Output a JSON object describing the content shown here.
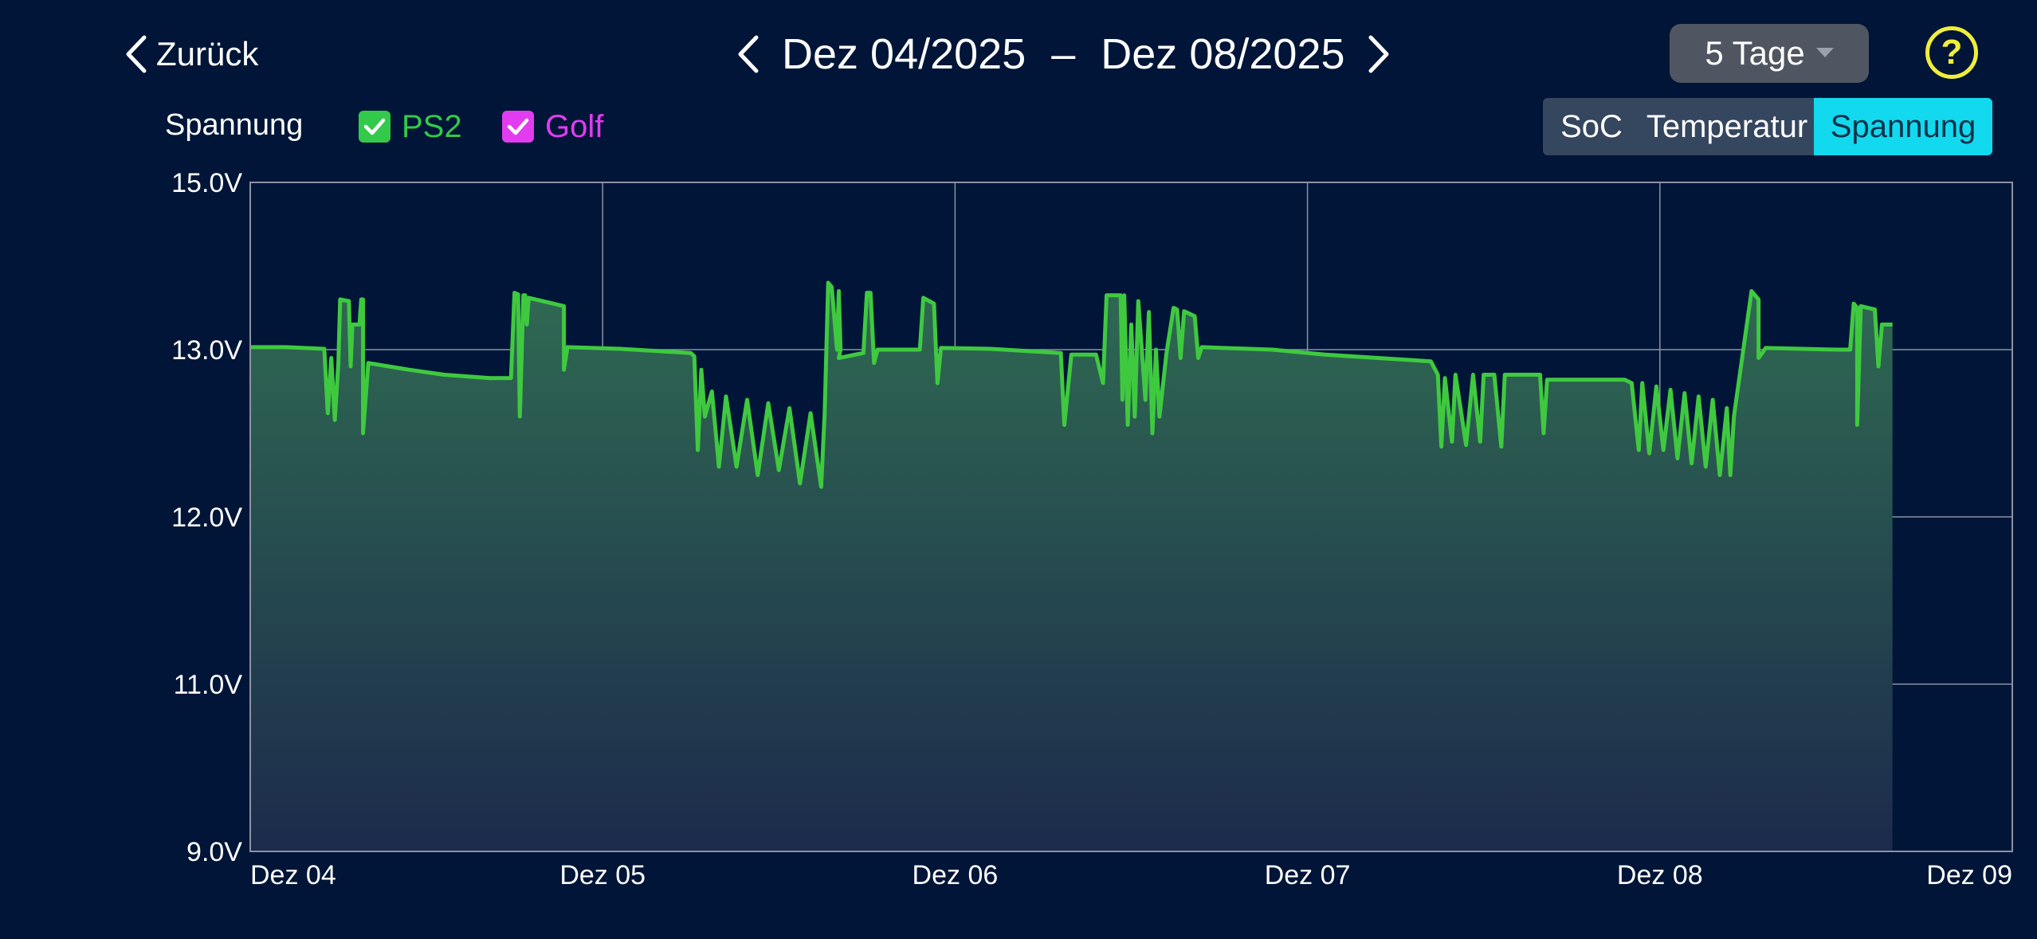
{
  "header": {
    "back_label": "Zurück",
    "date_from": "Dez 04/2025",
    "date_separator": "–",
    "date_to": "Dez 08/2025",
    "range_label": "5 Tage",
    "help_label": "?"
  },
  "filters": {
    "series_label": "Spannung",
    "items": [
      {
        "label": "PS2",
        "checked": true,
        "color": "#33c94a"
      },
      {
        "label": "Golf",
        "checked": true,
        "color": "#e23cf0"
      }
    ]
  },
  "tabs": [
    {
      "label": "SoC",
      "active": false
    },
    {
      "label": "Temperatur",
      "active": false
    },
    {
      "label": "Spannung",
      "active": true
    }
  ],
  "colors": {
    "background": "#001537",
    "line": "#3fc93f",
    "area_top": "#2f6a52",
    "area_bottom": "#1c2a4c",
    "active_tab": "#12d9ee",
    "help": "#f0ee3a"
  },
  "chart_data": {
    "type": "area",
    "title": "",
    "xlabel": "",
    "ylabel": "",
    "y_tick_labels": [
      "15.0V",
      "13.0V",
      "12.0V",
      "11.0V",
      "9.0V"
    ],
    "y_tick_values": [
      15.0,
      13.0,
      12.0,
      11.0,
      9.0
    ],
    "x_tick_labels": [
      "Dez 04",
      "Dez 05",
      "Dez 06",
      "Dez 07",
      "Dez 08",
      "Dez 09"
    ],
    "x_range_days": [
      0,
      5
    ],
    "grid": true,
    "series": [
      {
        "name": "PS2",
        "color": "#3fc93f",
        "points": [
          [
            0.0,
            13.03
          ],
          [
            0.1,
            13.03
          ],
          [
            0.21,
            13.01
          ],
          [
            0.22,
            12.62
          ],
          [
            0.23,
            12.95
          ],
          [
            0.24,
            12.58
          ],
          [
            0.25,
            12.92
          ],
          [
            0.255,
            13.6
          ],
          [
            0.28,
            13.58
          ],
          [
            0.285,
            12.9
          ],
          [
            0.29,
            13.3
          ],
          [
            0.31,
            13.3
          ],
          [
            0.315,
            13.6
          ],
          [
            0.32,
            13.6
          ],
          [
            0.32,
            12.5
          ],
          [
            0.335,
            12.92
          ],
          [
            0.45,
            12.88
          ],
          [
            0.55,
            12.85
          ],
          [
            0.68,
            12.83
          ],
          [
            0.74,
            12.83
          ],
          [
            0.75,
            13.68
          ],
          [
            0.76,
            13.66
          ],
          [
            0.765,
            12.6
          ],
          [
            0.775,
            13.65
          ],
          [
            0.78,
            13.65
          ],
          [
            0.785,
            13.3
          ],
          [
            0.79,
            13.62
          ],
          [
            0.85,
            13.56
          ],
          [
            0.89,
            13.52
          ],
          [
            0.89,
            12.88
          ],
          [
            0.9,
            13.03
          ],
          [
            1.05,
            13.01
          ],
          [
            1.25,
            12.98
          ],
          [
            1.26,
            12.96
          ],
          [
            1.27,
            12.4
          ],
          [
            1.28,
            12.88
          ],
          [
            1.29,
            12.6
          ],
          [
            1.31,
            12.75
          ],
          [
            1.33,
            12.3
          ],
          [
            1.35,
            12.72
          ],
          [
            1.38,
            12.3
          ],
          [
            1.41,
            12.7
          ],
          [
            1.44,
            12.25
          ],
          [
            1.47,
            12.68
          ],
          [
            1.5,
            12.28
          ],
          [
            1.53,
            12.65
          ],
          [
            1.56,
            12.2
          ],
          [
            1.59,
            12.62
          ],
          [
            1.62,
            12.18
          ],
          [
            1.63,
            12.62
          ],
          [
            1.64,
            13.8
          ],
          [
            1.65,
            13.75
          ],
          [
            1.665,
            13.0
          ],
          [
            1.67,
            13.7
          ],
          [
            1.675,
            13.0
          ],
          [
            1.67,
            12.95
          ],
          [
            1.74,
            12.98
          ],
          [
            1.75,
            13.68
          ],
          [
            1.76,
            13.68
          ],
          [
            1.77,
            12.92
          ],
          [
            1.78,
            13.0
          ],
          [
            1.9,
            13.0
          ],
          [
            1.91,
            13.62
          ],
          [
            1.94,
            13.55
          ],
          [
            1.95,
            12.8
          ],
          [
            1.96,
            13.02
          ],
          [
            2.1,
            13.01
          ],
          [
            2.3,
            12.98
          ],
          [
            2.31,
            12.55
          ],
          [
            2.33,
            12.97
          ],
          [
            2.4,
            12.97
          ],
          [
            2.42,
            12.8
          ],
          [
            2.43,
            13.65
          ],
          [
            2.47,
            13.65
          ],
          [
            2.475,
            12.7
          ],
          [
            2.48,
            13.65
          ],
          [
            2.49,
            12.55
          ],
          [
            2.5,
            13.3
          ],
          [
            2.51,
            12.6
          ],
          [
            2.52,
            13.58
          ],
          [
            2.54,
            12.7
          ],
          [
            2.55,
            13.45
          ],
          [
            2.56,
            12.5
          ],
          [
            2.57,
            13.0
          ],
          [
            2.58,
            12.6
          ],
          [
            2.6,
            12.98
          ],
          [
            2.62,
            13.5
          ],
          [
            2.63,
            13.48
          ],
          [
            2.64,
            12.95
          ],
          [
            2.65,
            13.46
          ],
          [
            2.68,
            13.4
          ],
          [
            2.69,
            12.95
          ],
          [
            2.7,
            13.03
          ],
          [
            2.9,
            13.0
          ],
          [
            3.05,
            12.97
          ],
          [
            3.2,
            12.95
          ],
          [
            3.35,
            12.93
          ],
          [
            3.37,
            12.85
          ],
          [
            3.38,
            12.42
          ],
          [
            3.39,
            12.83
          ],
          [
            3.41,
            12.45
          ],
          [
            3.42,
            12.85
          ],
          [
            3.45,
            12.43
          ],
          [
            3.47,
            12.85
          ],
          [
            3.49,
            12.45
          ],
          [
            3.5,
            12.85
          ],
          [
            3.53,
            12.85
          ],
          [
            3.55,
            12.42
          ],
          [
            3.56,
            12.85
          ],
          [
            3.66,
            12.85
          ],
          [
            3.67,
            12.5
          ],
          [
            3.68,
            12.82
          ],
          [
            3.9,
            12.82
          ],
          [
            3.92,
            12.8
          ],
          [
            3.94,
            12.4
          ],
          [
            3.95,
            12.8
          ],
          [
            3.97,
            12.38
          ],
          [
            3.99,
            12.78
          ],
          [
            4.01,
            12.4
          ],
          [
            4.03,
            12.76
          ],
          [
            4.05,
            12.35
          ],
          [
            4.07,
            12.74
          ],
          [
            4.09,
            12.32
          ],
          [
            4.11,
            12.72
          ],
          [
            4.13,
            12.3
          ],
          [
            4.15,
            12.7
          ],
          [
            4.17,
            12.25
          ],
          [
            4.19,
            12.65
          ],
          [
            4.2,
            12.25
          ],
          [
            4.21,
            12.6
          ],
          [
            4.26,
            13.7
          ],
          [
            4.28,
            13.6
          ],
          [
            4.28,
            12.95
          ],
          [
            4.3,
            13.02
          ],
          [
            4.5,
            13.0
          ],
          [
            4.54,
            13.0
          ],
          [
            4.55,
            13.55
          ],
          [
            4.56,
            13.5
          ],
          [
            4.56,
            12.55
          ],
          [
            4.57,
            13.52
          ],
          [
            4.61,
            13.48
          ],
          [
            4.62,
            12.9
          ],
          [
            4.63,
            13.3
          ],
          [
            4.66,
            13.3
          ]
        ]
      }
    ]
  }
}
